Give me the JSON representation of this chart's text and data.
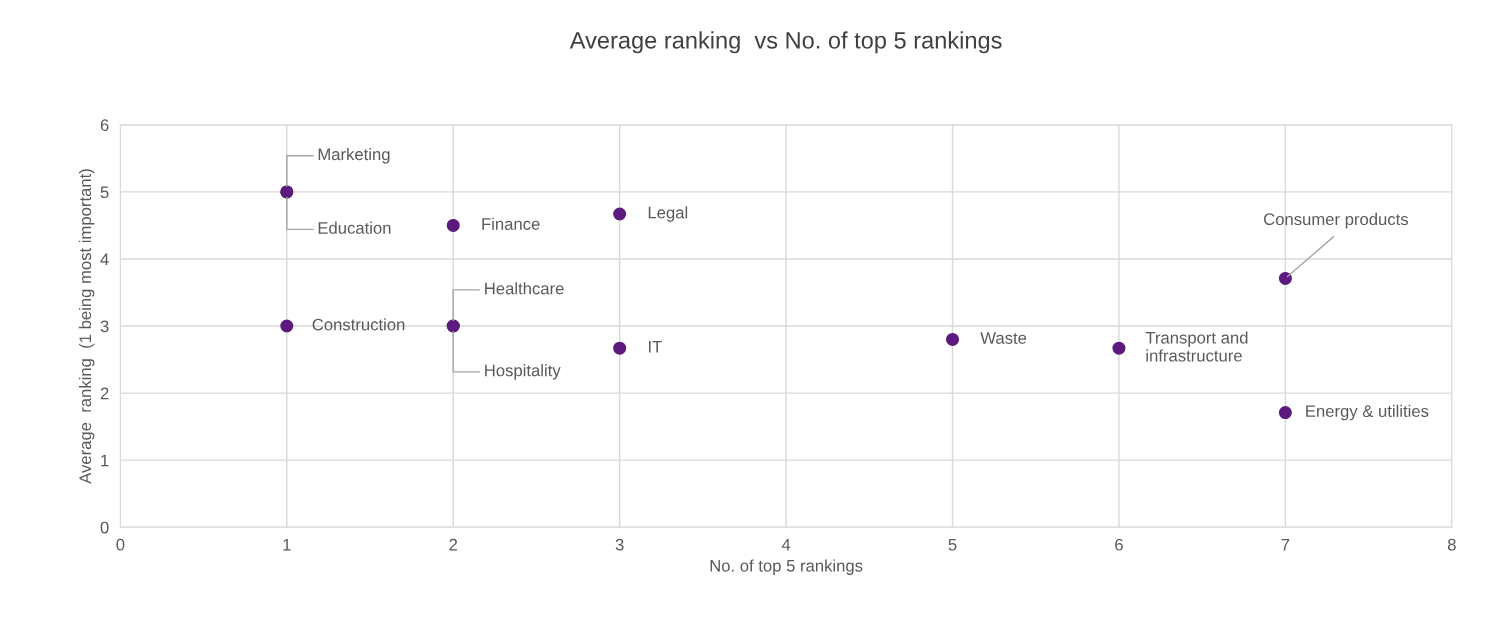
{
  "chart_data": {
    "type": "scatter",
    "title": "Average ranking  vs No. of top 5 rankings",
    "xlabel": "No. of top 5 rankings",
    "ylabel": "Average  ranking  (1 being most important)",
    "series": [
      {
        "color": "#5c1a7e",
        "x": [
          1,
          1,
          2,
          3,
          7,
          1,
          2,
          2,
          3,
          5,
          6,
          7
        ],
        "values": [
          5,
          5,
          4.5,
          4.67,
          3.71,
          3,
          3,
          3,
          2.67,
          2.8,
          2.67,
          1.71
        ]
      }
    ],
    "annotations": [
      {
        "text": "Marketing",
        "x": 1,
        "y": 5
      },
      {
        "text": "Education",
        "x": 1,
        "y": 5
      },
      {
        "text": "Finance",
        "x": 2,
        "y": 4.5
      },
      {
        "text": "Legal",
        "x": 3,
        "y": 4.67
      },
      {
        "text": "Consumer products",
        "x": 7,
        "y": 3.71
      },
      {
        "text": "Construction",
        "x": 1,
        "y": 3
      },
      {
        "text": "Healthcare",
        "x": 2,
        "y": 3
      },
      {
        "text": "Hospitality",
        "x": 2,
        "y": 3
      },
      {
        "text": "IT",
        "x": 3,
        "y": 2.67
      },
      {
        "text": "Waste",
        "x": 5,
        "y": 2.8
      },
      {
        "text": "Transport and\ninfrastructure",
        "x": 6,
        "y": 2.67
      },
      {
        "text": "Energy & utilities",
        "x": 7,
        "y": 1.71
      }
    ],
    "xlim": [
      0,
      8
    ],
    "xticks": [
      0,
      1,
      2,
      3,
      4,
      5,
      6,
      7,
      8
    ],
    "ylim": [
      0,
      6
    ],
    "yticks": [
      0,
      1,
      2,
      3,
      4,
      5,
      6
    ],
    "grid": true,
    "marker": "circle"
  }
}
